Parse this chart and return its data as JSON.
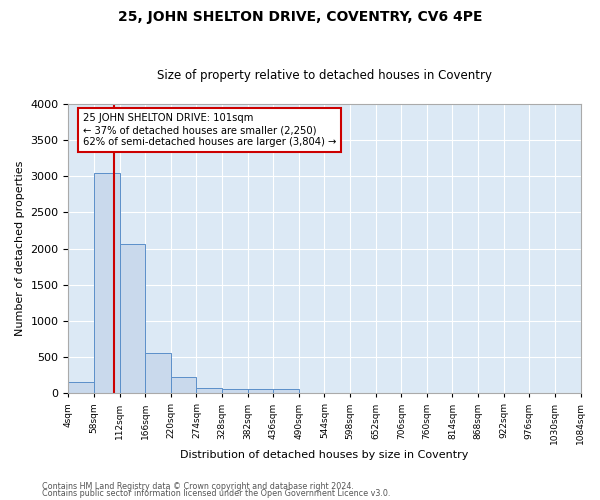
{
  "title": "25, JOHN SHELTON DRIVE, COVENTRY, CV6 4PE",
  "subtitle": "Size of property relative to detached houses in Coventry",
  "xlabel": "Distribution of detached houses by size in Coventry",
  "ylabel": "Number of detached properties",
  "bin_edges": [
    4,
    58,
    112,
    166,
    220,
    274,
    328,
    382,
    436,
    490,
    544,
    598,
    652,
    706,
    760,
    814,
    868,
    922,
    976,
    1030,
    1084
  ],
  "bin_counts": [
    150,
    3050,
    2070,
    560,
    220,
    75,
    60,
    55,
    55,
    0,
    0,
    0,
    0,
    0,
    0,
    0,
    0,
    0,
    0,
    0
  ],
  "property_size": 101,
  "annotation_line1": "25 JOHN SHELTON DRIVE: 101sqm",
  "annotation_line2": "← 37% of detached houses are smaller (2,250)",
  "annotation_line3": "62% of semi-detached houses are larger (3,804) →",
  "bar_color": "#c9d9ec",
  "bar_edge_color": "#5b8fc9",
  "line_color": "#cc0000",
  "annotation_box_color": "#ffffff",
  "annotation_box_edge": "#cc0000",
  "bg_color": "#dce9f5",
  "grid_color": "#ffffff",
  "fig_bg_color": "#ffffff",
  "ylim": [
    0,
    4000
  ],
  "xlim": [
    4,
    1084
  ],
  "yticks": [
    0,
    500,
    1000,
    1500,
    2000,
    2500,
    3000,
    3500,
    4000
  ],
  "footer1": "Contains HM Land Registry data © Crown copyright and database right 2024.",
  "footer2": "Contains public sector information licensed under the Open Government Licence v3.0."
}
